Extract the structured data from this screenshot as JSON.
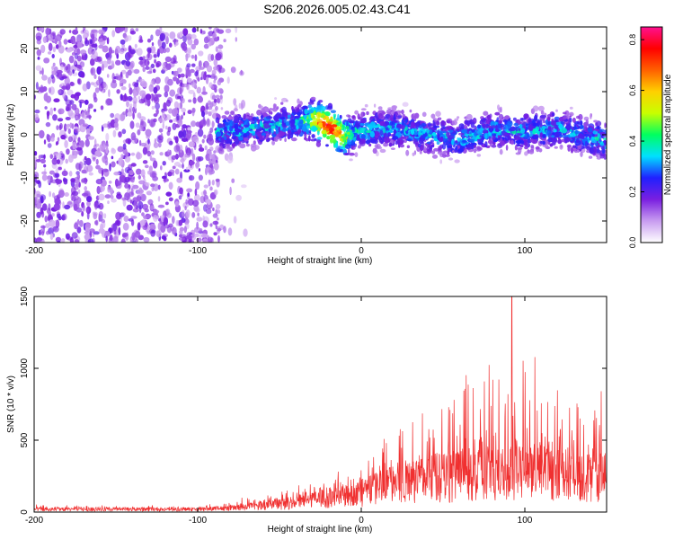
{
  "title": "S206.2026.005.02.43.C41",
  "chart_data": [
    {
      "type": "heatmap",
      "xlabel": "Height of straight line (km)",
      "ylabel": "Frequency (Hz)",
      "xlim": [
        -200,
        150
      ],
      "ylim": [
        -25,
        25
      ],
      "x_ticks": [
        -200,
        -100,
        0,
        100
      ],
      "x_tick_labels": [
        "-200",
        "-100",
        "0",
        "100"
      ],
      "y_ticks": [
        20,
        10,
        0,
        -10,
        -20
      ],
      "y_tick_labels": [
        "20",
        "10",
        "0",
        "-10",
        "-20"
      ],
      "colorbar": {
        "label": "Normalized spectral amplitude",
        "range": [
          0,
          0.85
        ],
        "ticks": [
          0.0,
          0.2,
          0.4,
          0.6,
          0.8
        ],
        "tick_labels": [
          "0.0",
          "0.2",
          "0.4",
          "0.6",
          "0.8"
        ],
        "colormap": [
          "#ffffff",
          "#c89cf0",
          "#7a1fe0",
          "#2020ff",
          "#00e0ff",
          "#00ff60",
          "#c8ff00",
          "#ffd000",
          "#ff6000",
          "#ff0000",
          "#ff1090"
        ]
      },
      "noise_region": {
        "x_range": [
          -200,
          -85
        ],
        "freq_range": [
          -25,
          25
        ],
        "amplitude": 0.06
      },
      "signal_band": {
        "x_range": [
          -88,
          150
        ],
        "halfwidth_hz": 4.5,
        "center_freq": [
          {
            "x": -88,
            "f": 0.5
          },
          {
            "x": -70,
            "f": 1.2
          },
          {
            "x": -50,
            "f": 2.5
          },
          {
            "x": -30,
            "f": 3.5
          },
          {
            "x": -20,
            "f": 2.0
          },
          {
            "x": -10,
            "f": -0.5
          },
          {
            "x": 0,
            "f": 1.0
          },
          {
            "x": 20,
            "f": 1.5
          },
          {
            "x": 40,
            "f": 0.0
          },
          {
            "x": 60,
            "f": -1.0
          },
          {
            "x": 80,
            "f": 1.0
          },
          {
            "x": 100,
            "f": 0.5
          },
          {
            "x": 120,
            "f": 1.5
          },
          {
            "x": 140,
            "f": -0.5
          },
          {
            "x": 150,
            "f": -1.5
          }
        ],
        "peak_amplitude": 0.85,
        "peak_x": -20
      }
    },
    {
      "type": "line",
      "xlabel": "Height of straight line (km)",
      "ylabel": "SNR (10 * v/v)",
      "xlim": [
        -200,
        150
      ],
      "ylim": [
        0,
        1500
      ],
      "x_ticks": [
        -200,
        -100,
        0,
        100
      ],
      "x_tick_labels": [
        "-200",
        "-100",
        "0",
        "100"
      ],
      "y_ticks": [
        0,
        500,
        1000,
        1500
      ],
      "y_tick_labels": [
        "0",
        "500",
        "1000",
        "1500"
      ],
      "color": "#f03030",
      "envelope": [
        {
          "x": -200,
          "base": 25,
          "peak": 45
        },
        {
          "x": -100,
          "base": 25,
          "peak": 40
        },
        {
          "x": -80,
          "base": 35,
          "peak": 80
        },
        {
          "x": -60,
          "base": 60,
          "peak": 120
        },
        {
          "x": -40,
          "base": 90,
          "peak": 180
        },
        {
          "x": -20,
          "base": 130,
          "peak": 250
        },
        {
          "x": 0,
          "base": 170,
          "peak": 330
        },
        {
          "x": 20,
          "base": 260,
          "peak": 750
        },
        {
          "x": 40,
          "base": 320,
          "peak": 800
        },
        {
          "x": 60,
          "base": 340,
          "peak": 900
        },
        {
          "x": 80,
          "base": 350,
          "peak": 1000
        },
        {
          "x": 100,
          "base": 360,
          "peak": 1050
        },
        {
          "x": 120,
          "base": 340,
          "peak": 1000
        },
        {
          "x": 150,
          "base": 330,
          "peak": 850
        }
      ],
      "max_spike": {
        "x": 92,
        "y": 1500
      }
    }
  ]
}
